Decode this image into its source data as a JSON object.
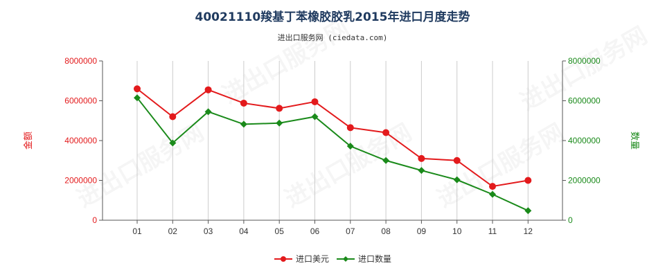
{
  "title": "40021110羧基丁苯橡胶胶乳2015年进口月度走势",
  "subtitle": "进出口服务网 (ciedata.com)",
  "watermark": "进出口服务网",
  "colors": {
    "usd": "#e31a1c",
    "qty": "#1a8a1a",
    "axis": "#555555",
    "grid": "#cccccc"
  },
  "chart_data": {
    "type": "line",
    "categories": [
      "01",
      "02",
      "03",
      "04",
      "05",
      "06",
      "07",
      "08",
      "09",
      "10",
      "11",
      "12"
    ],
    "y_left": {
      "label": "金额",
      "ticks": [
        "0",
        "2000000",
        "4000000",
        "6000000",
        "8000000"
      ],
      "range": [
        0,
        8000000
      ]
    },
    "y_right": {
      "label": "数量",
      "ticks": [
        "0",
        "2000000",
        "4000000",
        "6000000",
        "8000000"
      ],
      "range": [
        0,
        8000000
      ]
    },
    "grid": "vertical",
    "legend_position": "bottom",
    "series": [
      {
        "name": "进口美元",
        "axis": "left",
        "values": [
          6600000,
          5200000,
          6550000,
          5880000,
          5620000,
          5950000,
          4650000,
          4400000,
          3100000,
          3000000,
          1700000,
          2000000
        ]
      },
      {
        "name": "进口数量",
        "axis": "right",
        "values": [
          6150000,
          3880000,
          5450000,
          4820000,
          4880000,
          5200000,
          3720000,
          3000000,
          2500000,
          2030000,
          1300000,
          480000
        ]
      }
    ]
  }
}
